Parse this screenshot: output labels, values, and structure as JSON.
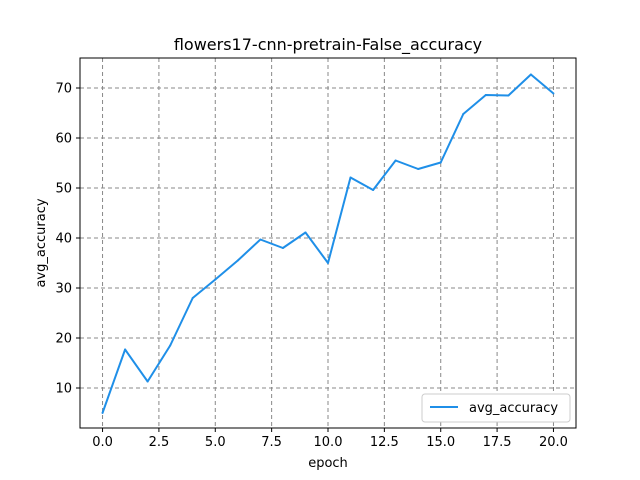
{
  "chart_data": {
    "type": "line",
    "title": "flowers17-cnn-pretrain-False_accuracy",
    "xlabel": "epoch",
    "ylabel": "avg_accuracy",
    "xlim": [
      -1,
      21
    ],
    "ylim": [
      2,
      76
    ],
    "xticks": [
      0.0,
      2.5,
      5.0,
      7.5,
      10.0,
      12.5,
      15.0,
      17.5,
      20.0
    ],
    "xtick_labels": [
      "0.0",
      "2.5",
      "5.0",
      "7.5",
      "10.0",
      "12.5",
      "15.0",
      "17.5",
      "20.0"
    ],
    "yticks": [
      10,
      20,
      30,
      40,
      50,
      60,
      70
    ],
    "ytick_labels": [
      "10",
      "20",
      "30",
      "40",
      "50",
      "60",
      "70"
    ],
    "grid": true,
    "legend_position": "lower-right",
    "series": [
      {
        "name": "avg_accuracy",
        "color": "#1f8fe8",
        "x": [
          0,
          1,
          2,
          3,
          4,
          5,
          6,
          7,
          8,
          9,
          10,
          11,
          12,
          13,
          14,
          15,
          16,
          17,
          18,
          19,
          20
        ],
        "y": [
          5.0,
          17.7,
          11.3,
          18.5,
          28.0,
          31.7,
          35.5,
          39.7,
          38.0,
          41.1,
          35.0,
          52.1,
          49.6,
          55.5,
          53.8,
          55.1,
          64.8,
          68.6,
          68.5,
          72.7,
          68.9
        ]
      }
    ]
  }
}
